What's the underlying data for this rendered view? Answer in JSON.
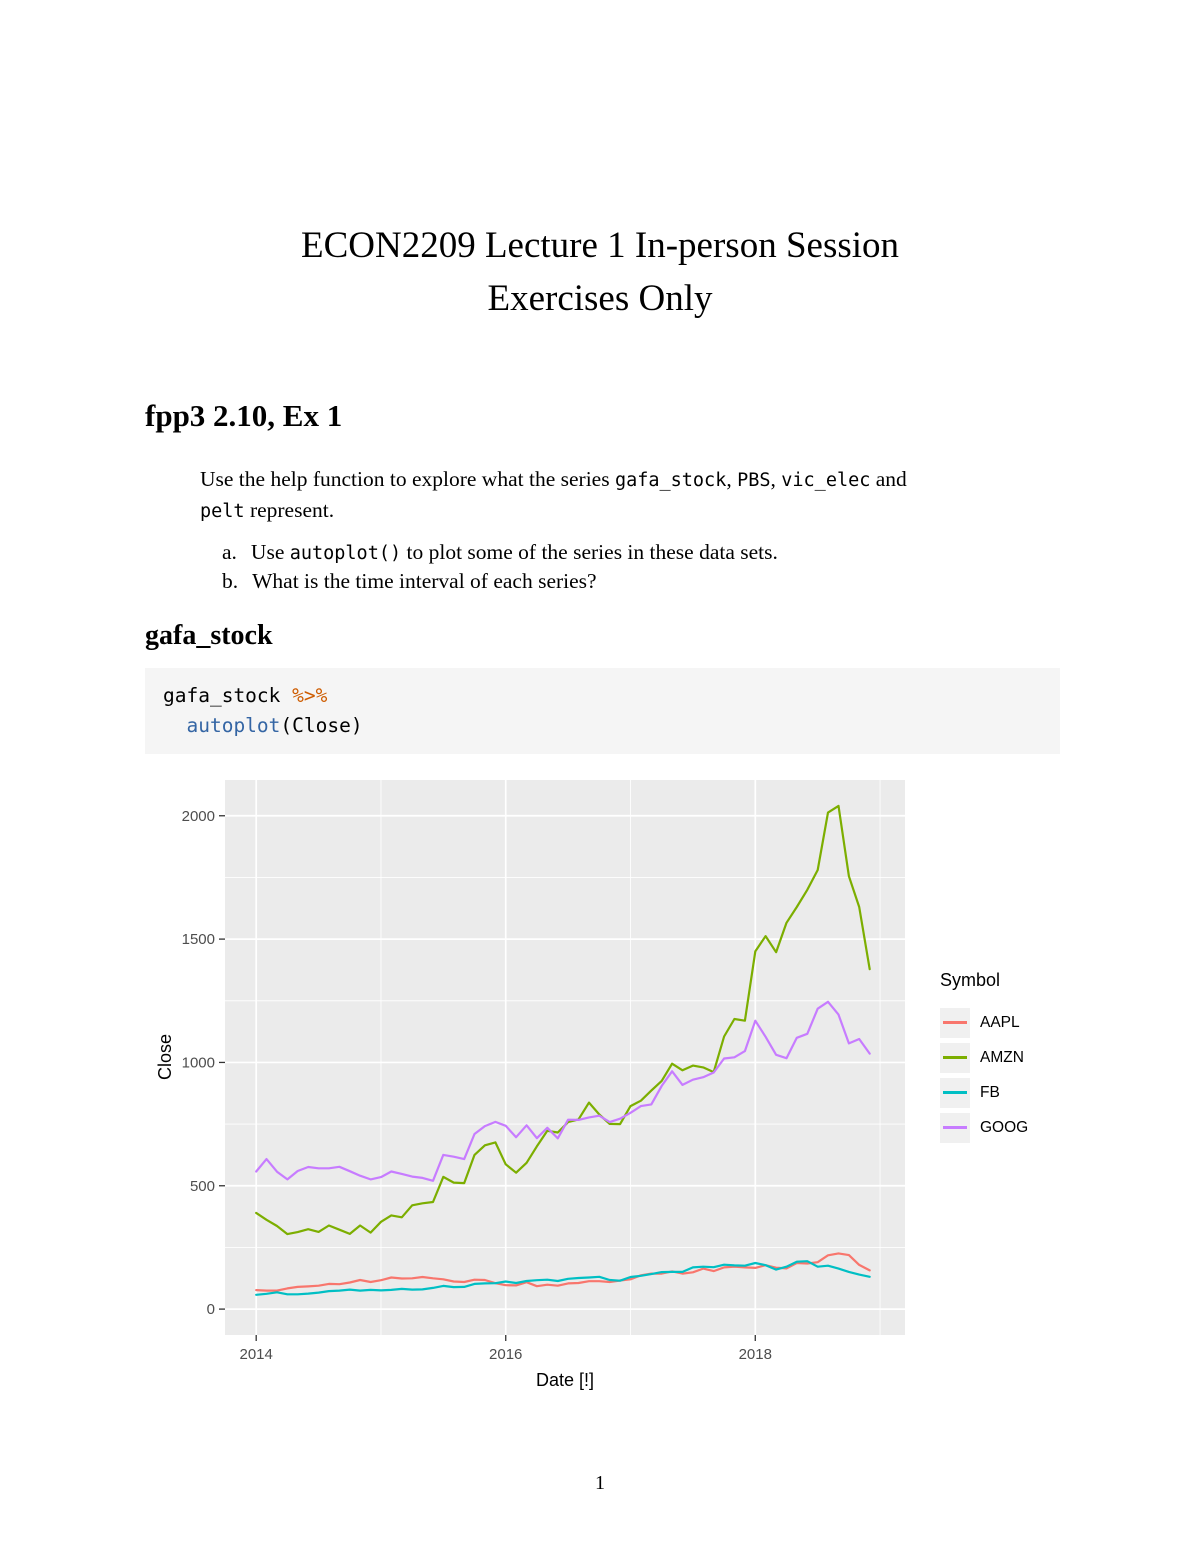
{
  "doc": {
    "title_line1": "ECON2209 Lecture 1 In-person Session",
    "title_line2": "Exercises Only",
    "page_number": "1"
  },
  "exercise": {
    "heading": "fpp3 2.10, Ex 1",
    "intro": {
      "p1": "Use the help function to explore what the series ",
      "c1": "gafa_stock",
      "p2": ", ",
      "c2": "PBS",
      "p3": ", ",
      "c3": "vic_elec",
      "p4": " and",
      "c4": "pelt",
      "p5": " represent."
    },
    "items": {
      "a_label": "a.",
      "a_pre": "Use ",
      "a_code": "autoplot()",
      "a_post": " to plot some of the series in these data sets.",
      "b_label": "b.",
      "b_text": "What is the time interval of each series?"
    }
  },
  "code_section": {
    "heading": "gafa_stock",
    "line1_code": "gafa_stock ",
    "line1_op": "%>%",
    "line2_indent": "  ",
    "line2_fn": "autoplot",
    "line2_rest": "(Close)",
    "operator_color": "#ce5c00",
    "function_color": "#3465a4",
    "block_bg": "#f5f5f5"
  },
  "chart_data": {
    "type": "line",
    "title": "",
    "xlabel": "Date [!]",
    "ylabel": "Close",
    "legend_title": "Symbol",
    "legend_position": "right",
    "panel_bg": "#EBEBEB",
    "grid": "white major and minor gridlines on grey panel",
    "xlim": [
      2013.75,
      2019.2
    ],
    "ylim": [
      -105,
      2145
    ],
    "x_ticks": [
      2014,
      2016,
      2018
    ],
    "x_minor_ticks": [
      2015,
      2017,
      2019
    ],
    "y_ticks": [
      0,
      500,
      1000,
      1500,
      2000
    ],
    "y_minor_ticks": [
      250,
      750,
      1250,
      1750
    ],
    "x": [
      2014.0,
      2014.083,
      2014.167,
      2014.25,
      2014.333,
      2014.417,
      2014.5,
      2014.583,
      2014.667,
      2014.75,
      2014.833,
      2014.917,
      2015.0,
      2015.083,
      2015.167,
      2015.25,
      2015.333,
      2015.417,
      2015.5,
      2015.583,
      2015.667,
      2015.75,
      2015.833,
      2015.917,
      2016.0,
      2016.083,
      2016.167,
      2016.25,
      2016.333,
      2016.417,
      2016.5,
      2016.583,
      2016.667,
      2016.75,
      2016.833,
      2016.917,
      2017.0,
      2017.083,
      2017.167,
      2017.25,
      2017.333,
      2017.417,
      2017.5,
      2017.583,
      2017.667,
      2017.75,
      2017.833,
      2017.917,
      2018.0,
      2018.083,
      2018.167,
      2018.25,
      2018.333,
      2018.417,
      2018.5,
      2018.583,
      2018.667,
      2018.75,
      2018.833,
      2018.917
    ],
    "series": [
      {
        "name": "AAPL",
        "color": "#F8766D",
        "values": [
          77,
          75,
          75,
          84,
          90,
          92,
          95,
          102,
          101,
          108,
          118,
          110,
          117,
          128,
          124,
          125,
          130,
          125,
          121,
          112,
          110,
          119,
          118,
          105,
          97,
          96,
          109,
          93,
          99,
          95,
          104,
          106,
          113,
          113,
          110,
          116,
          121,
          137,
          144,
          144,
          153,
          144,
          149,
          164,
          154,
          169,
          172,
          169,
          167,
          178,
          168,
          165,
          187,
          185,
          190,
          218,
          226,
          219,
          179,
          157
        ]
      },
      {
        "name": "AMZN",
        "color": "#7CAE00",
        "values": [
          390,
          362,
          337,
          304,
          312,
          324,
          313,
          339,
          322,
          305,
          339,
          310,
          354,
          380,
          372,
          421,
          429,
          434,
          536,
          513,
          511,
          625,
          664,
          676,
          587,
          553,
          593,
          660,
          723,
          716,
          758,
          769,
          837,
          789,
          751,
          750,
          823,
          845,
          886,
          925,
          995,
          968,
          987,
          980,
          961,
          1105,
          1176,
          1169,
          1450,
          1512,
          1447,
          1566,
          1630,
          1700,
          1780,
          2013,
          2040,
          1755,
          1630,
          1378
        ]
      },
      {
        "name": "FB",
        "color": "#00BFC4",
        "values": [
          58,
          62,
          68,
          60,
          60,
          63,
          67,
          73,
          75,
          79,
          75,
          78,
          76,
          78,
          82,
          79,
          80,
          86,
          94,
          89,
          90,
          102,
          104,
          105,
          112,
          106,
          114,
          117,
          119,
          114,
          123,
          126,
          128,
          131,
          118,
          115,
          130,
          135,
          142,
          150,
          151,
          151,
          169,
          172,
          170,
          180,
          177,
          176,
          187,
          178,
          160,
          172,
          192,
          194,
          172,
          176,
          164,
          151,
          140,
          131
        ]
      },
      {
        "name": "GOOG",
        "color": "#C77CFF",
        "values": [
          558,
          608,
          557,
          526,
          560,
          576,
          571,
          571,
          577,
          559,
          541,
          526,
          535,
          558,
          548,
          537,
          532,
          520,
          625,
          618,
          608,
          710,
          742,
          759,
          743,
          697,
          745,
          693,
          735,
          692,
          768,
          767,
          777,
          784,
          758,
          772,
          796,
          823,
          830,
          905,
          964,
          909,
          930,
          940,
          959,
          1016,
          1021,
          1046,
          1169,
          1104,
          1031,
          1017,
          1100,
          1116,
          1218,
          1246,
          1194,
          1077,
          1095,
          1036
        ]
      }
    ]
  }
}
